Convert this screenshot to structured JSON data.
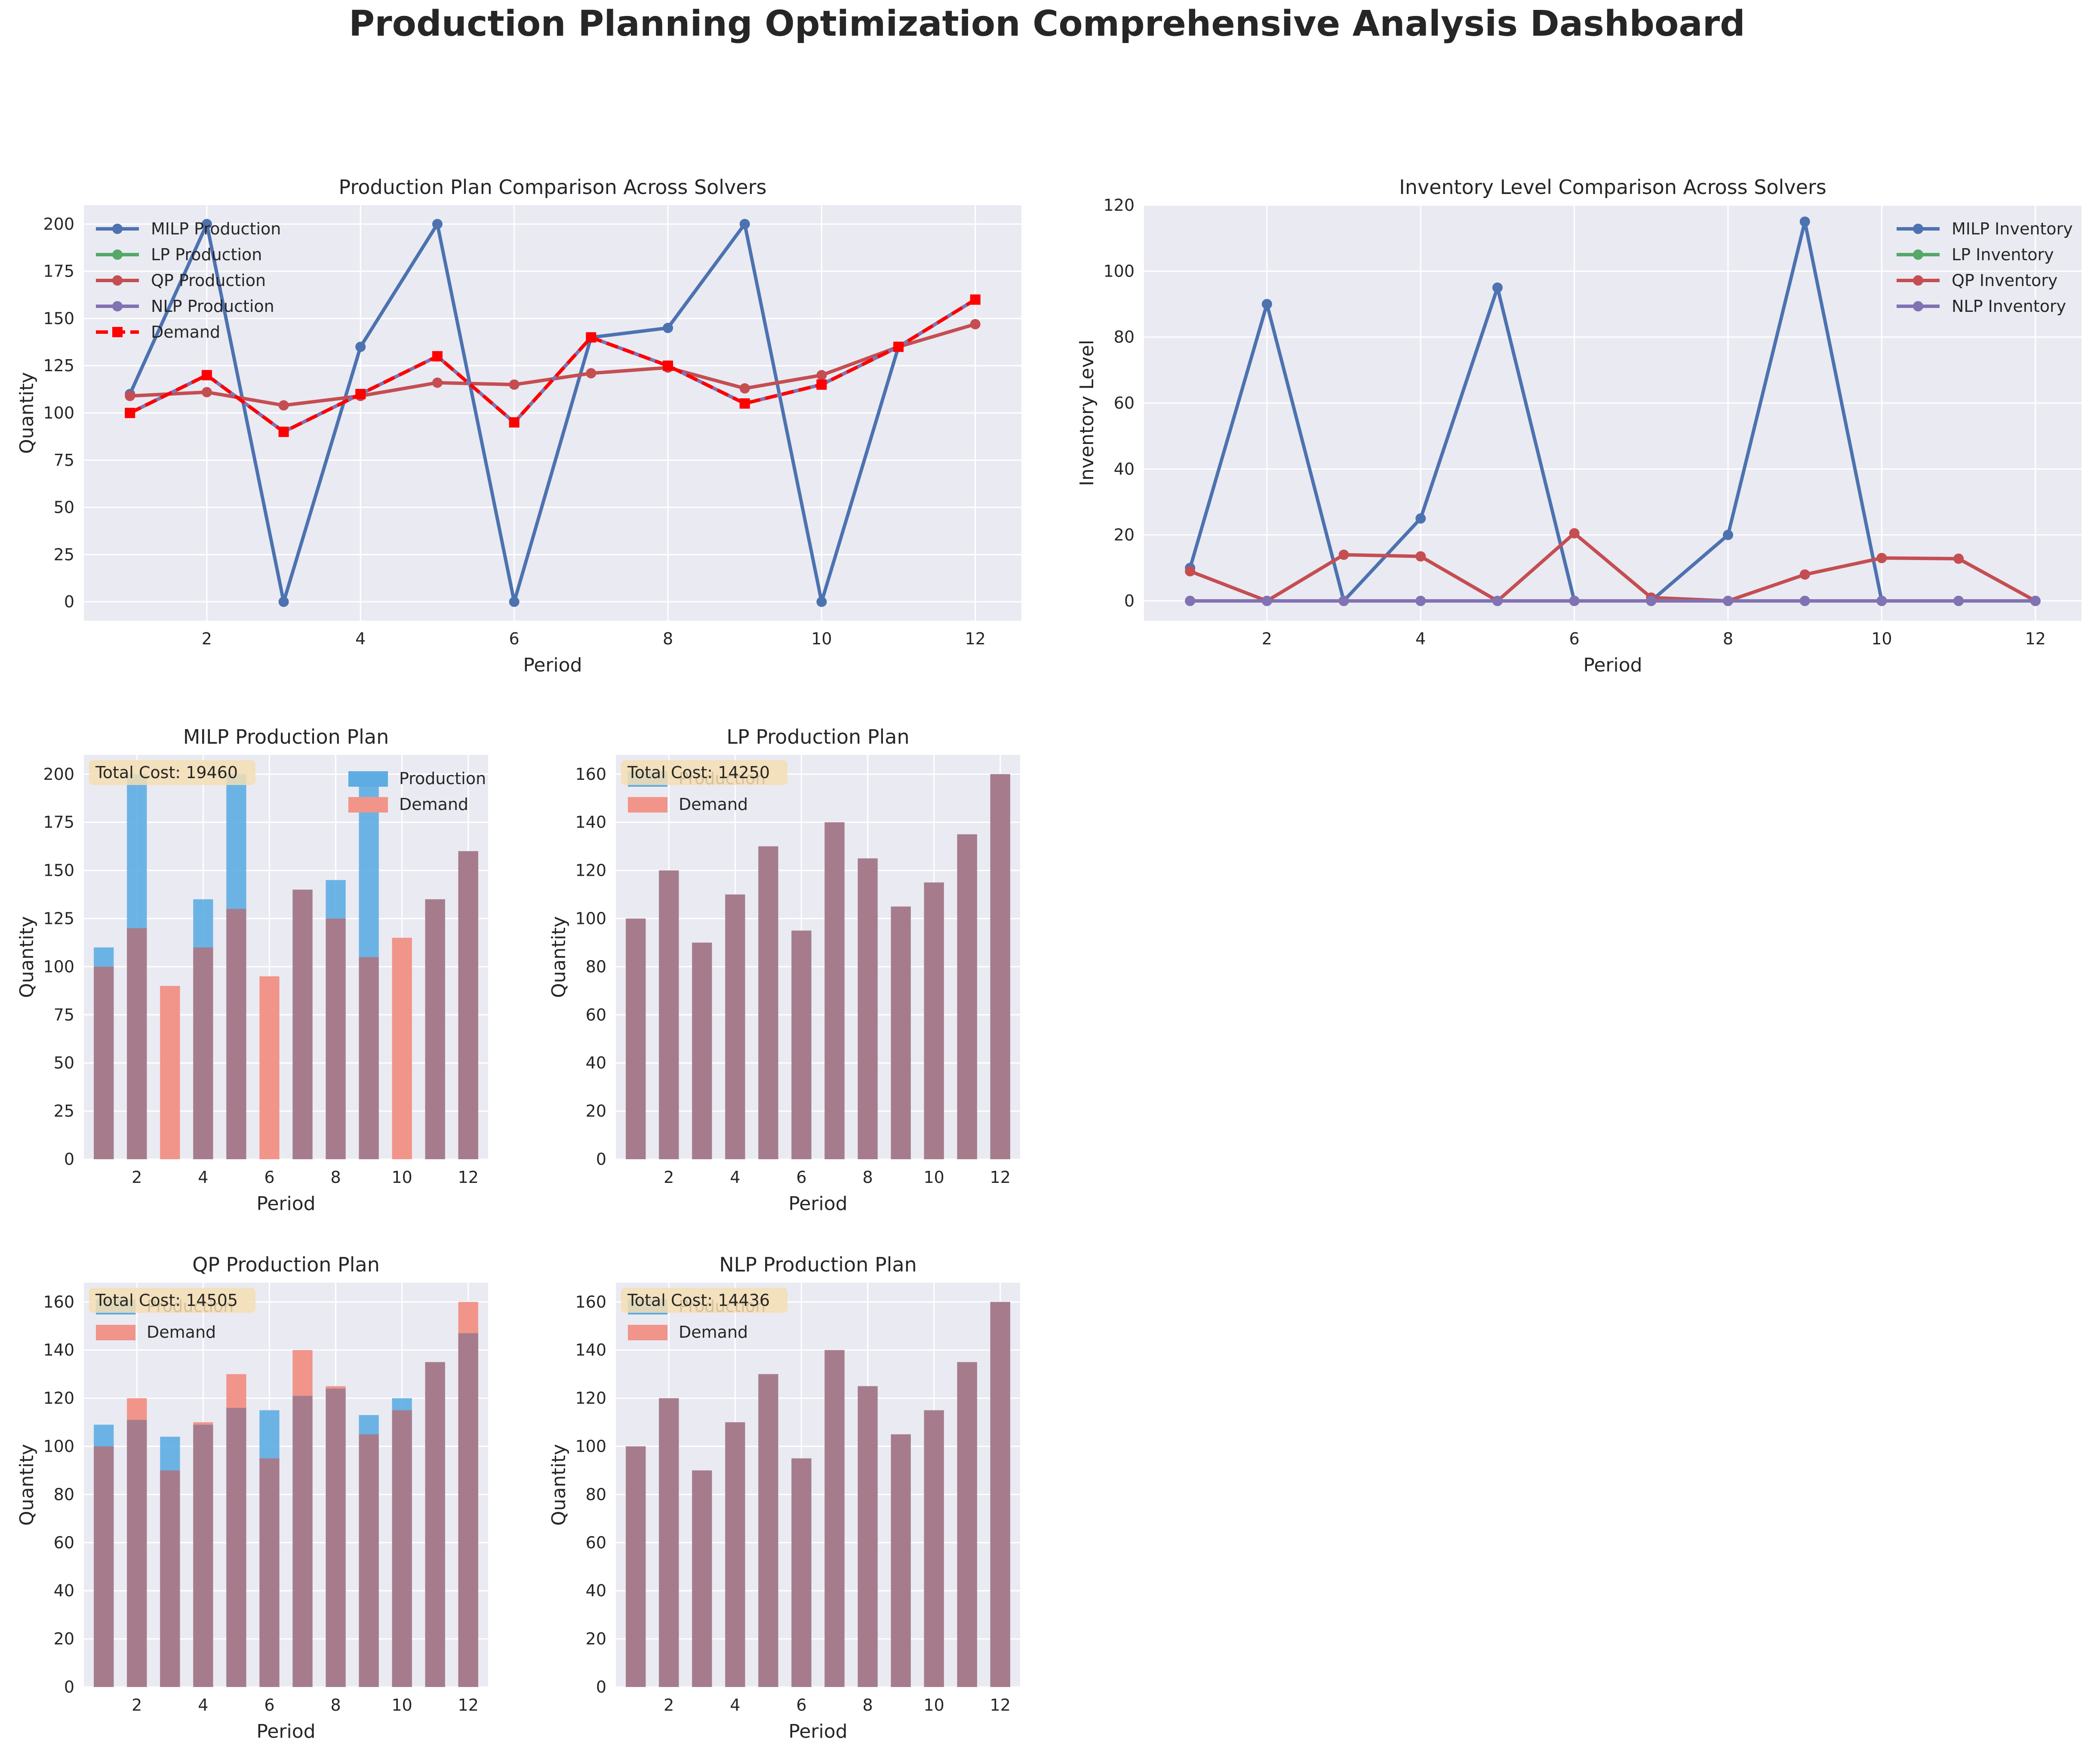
{
  "dashboard_title": "Production Planning Optimization Comprehensive Analysis Dashboard",
  "colors": {
    "milp": "#4c72b0",
    "lp": "#55a868",
    "qp": "#c44e52",
    "nlp": "#8172b3",
    "demand_line": "#ff0000",
    "bar_production": "#5dade2",
    "bar_demand": "#f1948a",
    "panel_bg": "#eaeaf2",
    "cost_box": "#f5deb3"
  },
  "chart_data": [
    {
      "type": "line",
      "title": "Production Plan Comparison Across Solvers",
      "xlabel": "Period",
      "ylabel": "Quantity",
      "x": [
        1,
        2,
        3,
        4,
        5,
        6,
        7,
        8,
        9,
        10,
        11,
        12
      ],
      "xlim": [
        0.4,
        12.6
      ],
      "ylim": [
        -10,
        210
      ],
      "xticks": [
        2,
        4,
        6,
        8,
        10,
        12
      ],
      "yticks": [
        0,
        25,
        50,
        75,
        100,
        125,
        150,
        175,
        200
      ],
      "legend_position": "upper-left",
      "grid": true,
      "series": [
        {
          "name": "MILP Production",
          "color": "#4c72b0",
          "marker": "circle",
          "dashed": false,
          "values": [
            110,
            200,
            0,
            135,
            200,
            0,
            140,
            145,
            200,
            0,
            135,
            160
          ]
        },
        {
          "name": "LP Production",
          "color": "#55a868",
          "marker": "circle",
          "dashed": false,
          "values": [
            100,
            120,
            90,
            110,
            130,
            95,
            140,
            125,
            105,
            115,
            135,
            160
          ]
        },
        {
          "name": "QP Production",
          "color": "#c44e52",
          "marker": "circle",
          "dashed": false,
          "values": [
            109,
            111,
            104,
            109,
            116,
            115,
            121,
            124,
            113,
            120,
            135,
            147
          ]
        },
        {
          "name": "NLP Production",
          "color": "#8172b3",
          "marker": "circle",
          "dashed": false,
          "values": [
            100,
            120,
            90,
            110,
            130,
            95,
            140,
            125,
            105,
            115,
            135,
            160
          ]
        },
        {
          "name": "Demand",
          "color": "#ff0000",
          "marker": "square",
          "dashed": true,
          "values": [
            100,
            120,
            90,
            110,
            130,
            95,
            140,
            125,
            105,
            115,
            135,
            160
          ]
        }
      ]
    },
    {
      "type": "line",
      "title": "Inventory Level Comparison Across Solvers",
      "xlabel": "Period",
      "ylabel": "Inventory Level",
      "x": [
        1,
        2,
        3,
        4,
        5,
        6,
        7,
        8,
        9,
        10,
        11,
        12
      ],
      "xlim": [
        0.4,
        12.6
      ],
      "ylim": [
        -6,
        120
      ],
      "xticks": [
        2,
        4,
        6,
        8,
        10,
        12
      ],
      "yticks": [
        0,
        20,
        40,
        60,
        80,
        100,
        120
      ],
      "legend_position": "upper-right",
      "grid": true,
      "series": [
        {
          "name": "MILP Inventory",
          "color": "#4c72b0",
          "marker": "circle",
          "dashed": false,
          "values": [
            10,
            90,
            0,
            25,
            95,
            0,
            0,
            20,
            115,
            0,
            0,
            0
          ]
        },
        {
          "name": "LP Inventory",
          "color": "#55a868",
          "marker": "circle",
          "dashed": false,
          "values": [
            0,
            0,
            0,
            0,
            0,
            0,
            0,
            0,
            0,
            0,
            0,
            0
          ]
        },
        {
          "name": "QP Inventory",
          "color": "#c44e52",
          "marker": "circle",
          "dashed": false,
          "values": [
            9,
            0,
            14,
            13.5,
            0,
            20.5,
            1,
            0,
            8,
            13,
            12.8,
            0
          ]
        },
        {
          "name": "NLP Inventory",
          "color": "#8172b3",
          "marker": "circle",
          "dashed": false,
          "values": [
            0,
            0,
            0,
            0,
            0,
            0,
            0,
            0,
            0,
            0,
            0,
            0
          ]
        }
      ]
    },
    {
      "type": "bar",
      "title": "MILP Production Plan",
      "xlabel": "Period",
      "ylabel": "Quantity",
      "categories": [
        1,
        2,
        3,
        4,
        5,
        6,
        7,
        8,
        9,
        10,
        11,
        12
      ],
      "xlim": [
        0.4,
        12.6
      ],
      "ylim": [
        0,
        210
      ],
      "xticks": [
        2,
        4,
        6,
        8,
        10,
        12
      ],
      "yticks": [
        0,
        25,
        50,
        75,
        100,
        125,
        150,
        175,
        200
      ],
      "legend_position": "upper-right",
      "annotation": "Total Cost: 19460",
      "series": [
        {
          "name": "Production",
          "values": [
            110,
            200,
            0,
            135,
            200,
            0,
            140,
            145,
            200,
            0,
            135,
            160
          ]
        },
        {
          "name": "Demand",
          "values": [
            100,
            120,
            90,
            110,
            130,
            95,
            140,
            125,
            105,
            115,
            135,
            160
          ]
        }
      ]
    },
    {
      "type": "bar",
      "title": "LP Production Plan",
      "xlabel": "Period",
      "ylabel": "Quantity",
      "categories": [
        1,
        2,
        3,
        4,
        5,
        6,
        7,
        8,
        9,
        10,
        11,
        12
      ],
      "xlim": [
        0.4,
        12.6
      ],
      "ylim": [
        0,
        168
      ],
      "xticks": [
        2,
        4,
        6,
        8,
        10,
        12
      ],
      "yticks": [
        0,
        20,
        40,
        60,
        80,
        100,
        120,
        140,
        160
      ],
      "legend_position": "upper-left",
      "annotation": "Total Cost: 14250",
      "series": [
        {
          "name": "Production",
          "values": [
            100,
            120,
            90,
            110,
            130,
            95,
            140,
            125,
            105,
            115,
            135,
            160
          ]
        },
        {
          "name": "Demand",
          "values": [
            100,
            120,
            90,
            110,
            130,
            95,
            140,
            125,
            105,
            115,
            135,
            160
          ]
        }
      ]
    },
    {
      "type": "bar",
      "title": "QP Production Plan",
      "xlabel": "Period",
      "ylabel": "Quantity",
      "categories": [
        1,
        2,
        3,
        4,
        5,
        6,
        7,
        8,
        9,
        10,
        11,
        12
      ],
      "xlim": [
        0.4,
        12.6
      ],
      "ylim": [
        0,
        168
      ],
      "xticks": [
        2,
        4,
        6,
        8,
        10,
        12
      ],
      "yticks": [
        0,
        20,
        40,
        60,
        80,
        100,
        120,
        140,
        160
      ],
      "legend_position": "upper-left",
      "annotation": "Total Cost: 14505",
      "series": [
        {
          "name": "Production",
          "values": [
            109,
            111,
            104,
            109,
            116,
            115,
            121,
            124,
            113,
            120,
            135,
            147
          ]
        },
        {
          "name": "Demand",
          "values": [
            100,
            120,
            90,
            110,
            130,
            95,
            140,
            125,
            105,
            115,
            135,
            160
          ]
        }
      ]
    },
    {
      "type": "bar",
      "title": "NLP Production Plan",
      "xlabel": "Period",
      "ylabel": "Quantity",
      "categories": [
        1,
        2,
        3,
        4,
        5,
        6,
        7,
        8,
        9,
        10,
        11,
        12
      ],
      "xlim": [
        0.4,
        12.6
      ],
      "ylim": [
        0,
        168
      ],
      "xticks": [
        2,
        4,
        6,
        8,
        10,
        12
      ],
      "yticks": [
        0,
        20,
        40,
        60,
        80,
        100,
        120,
        140,
        160
      ],
      "legend_position": "upper-left",
      "annotation": "Total Cost: 14436",
      "series": [
        {
          "name": "Production",
          "values": [
            100,
            120,
            90,
            110,
            130,
            95,
            140,
            125,
            105,
            115,
            135,
            160
          ]
        },
        {
          "name": "Demand",
          "values": [
            100,
            120,
            90,
            110,
            130,
            95,
            140,
            125,
            105,
            115,
            135,
            160
          ]
        }
      ]
    }
  ]
}
